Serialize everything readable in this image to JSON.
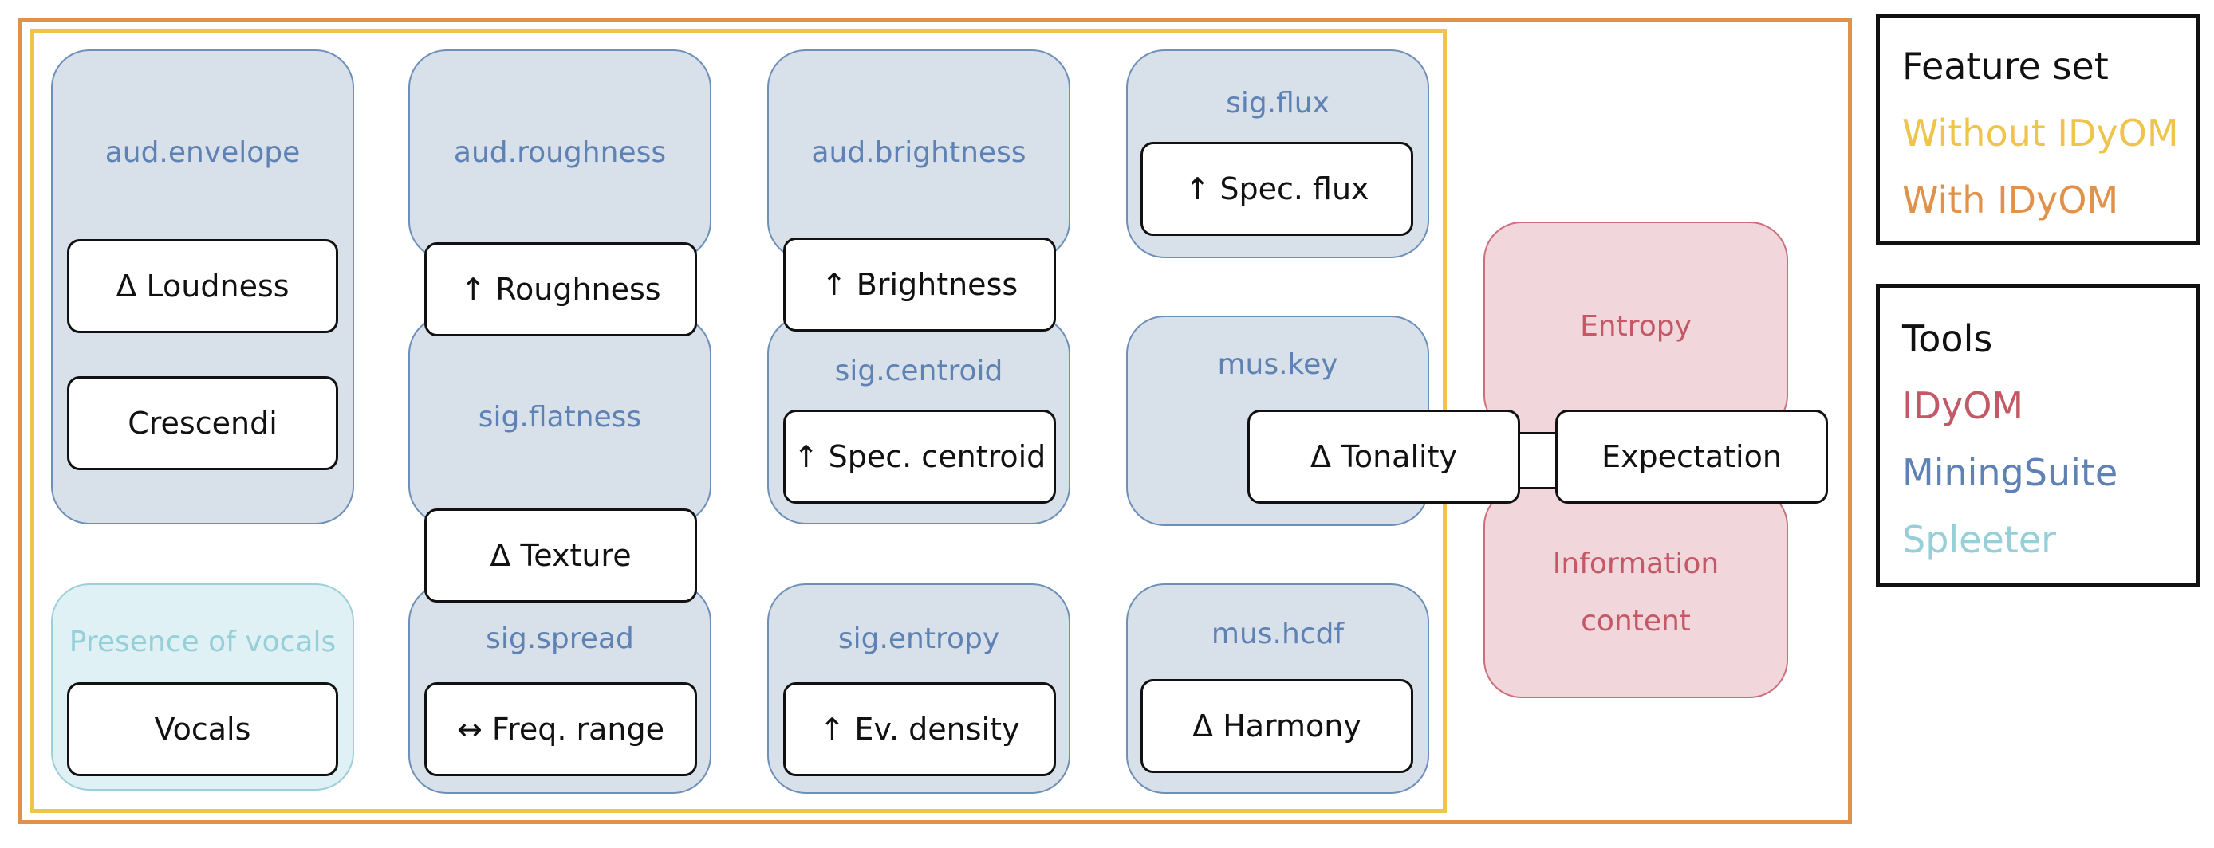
{
  "legend_feature_set": {
    "title": "Feature set",
    "items": [
      {
        "label": "Without IDyOM",
        "color": "#efc44a"
      },
      {
        "label": "With IDyOM",
        "color": "#e0924a"
      }
    ]
  },
  "legend_tools": {
    "title": "Tools",
    "items": [
      {
        "label": "IDyOM",
        "color": "#c35966"
      },
      {
        "label": "MiningSuite",
        "color": "#5f82b5"
      },
      {
        "label": "Spleeter",
        "color": "#96cfd8"
      }
    ]
  },
  "tools": {
    "aud_envelope": "aud.envelope",
    "aud_roughness": "aud.roughness",
    "aud_brightness": "aud.brightness",
    "sig_flux": "sig.flux",
    "sig_flatness": "sig.flatness",
    "sig_centroid": "sig.centroid",
    "mus_key": "mus.key",
    "presence_of_vocals": "Presence of vocals",
    "sig_spread": "sig.spread",
    "sig_entropy": "sig.entropy",
    "mus_hcdf": "mus.hcdf",
    "entropy": "Entropy",
    "information_content": "Information\ncontent"
  },
  "features": {
    "loudness": "Δ Loudness",
    "crescendi": "Crescendi",
    "roughness": "↑ Roughness",
    "brightness": "↑ Brightness",
    "spec_flux": "↑ Spec. flux",
    "texture": "Δ Texture",
    "spec_centroid": "↑ Spec. centroid",
    "tonality": "Δ Tonality",
    "expectation": "Expectation",
    "vocals": "Vocals",
    "freq_range": "↔ Freq. range",
    "ev_density": "↑ Ev. density",
    "harmony": "Δ Harmony"
  }
}
